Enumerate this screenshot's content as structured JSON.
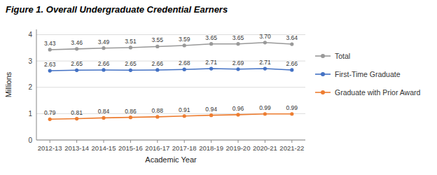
{
  "chart_data": {
    "type": "line",
    "title": "Figure 1. Overall Undergraduate Credential Earners",
    "xlabel": "Academic Year",
    "ylabel": "Millions",
    "categories": [
      "2012-13",
      "2013-14",
      "2014-15",
      "2015-16",
      "2016-17",
      "2017-18",
      "2018-19",
      "2019-20",
      "2020-21",
      "2021-22"
    ],
    "series": [
      {
        "name": "Total",
        "color": "#999999",
        "marker": "circle",
        "values": [
          3.43,
          3.46,
          3.49,
          3.51,
          3.55,
          3.59,
          3.65,
          3.65,
          3.7,
          3.64
        ],
        "value_labels": [
          "3.43",
          "3.46",
          "3.49",
          "3.51",
          "3.55",
          "3.59",
          "3.65",
          "3.65",
          "3.70",
          "3.64"
        ]
      },
      {
        "name": "First-Time Graduate",
        "color": "#4472C4",
        "marker": "circle",
        "values": [
          2.63,
          2.65,
          2.66,
          2.65,
          2.66,
          2.68,
          2.71,
          2.69,
          2.71,
          2.66
        ],
        "value_labels": [
          "2.63",
          "2.65",
          "2.66",
          "2.65",
          "2.66",
          "2.68",
          "2.71",
          "2.69",
          "2.71",
          "2.66"
        ]
      },
      {
        "name": "Graduate with Prior Award",
        "color": "#ED7D31",
        "marker": "circle",
        "values": [
          0.79,
          0.81,
          0.84,
          0.86,
          0.88,
          0.91,
          0.94,
          0.96,
          0.99,
          0.99
        ],
        "value_labels": [
          "0.79",
          "0.81",
          "0.84",
          "0.86",
          "0.88",
          "0.91",
          "0.94",
          "0.96",
          "0.99",
          "0.99"
        ]
      }
    ],
    "ylim": [
      0,
      4.2
    ],
    "yticks": [
      0,
      1,
      2,
      3,
      4
    ],
    "grid": true,
    "legend": "right",
    "data_labels": true
  }
}
